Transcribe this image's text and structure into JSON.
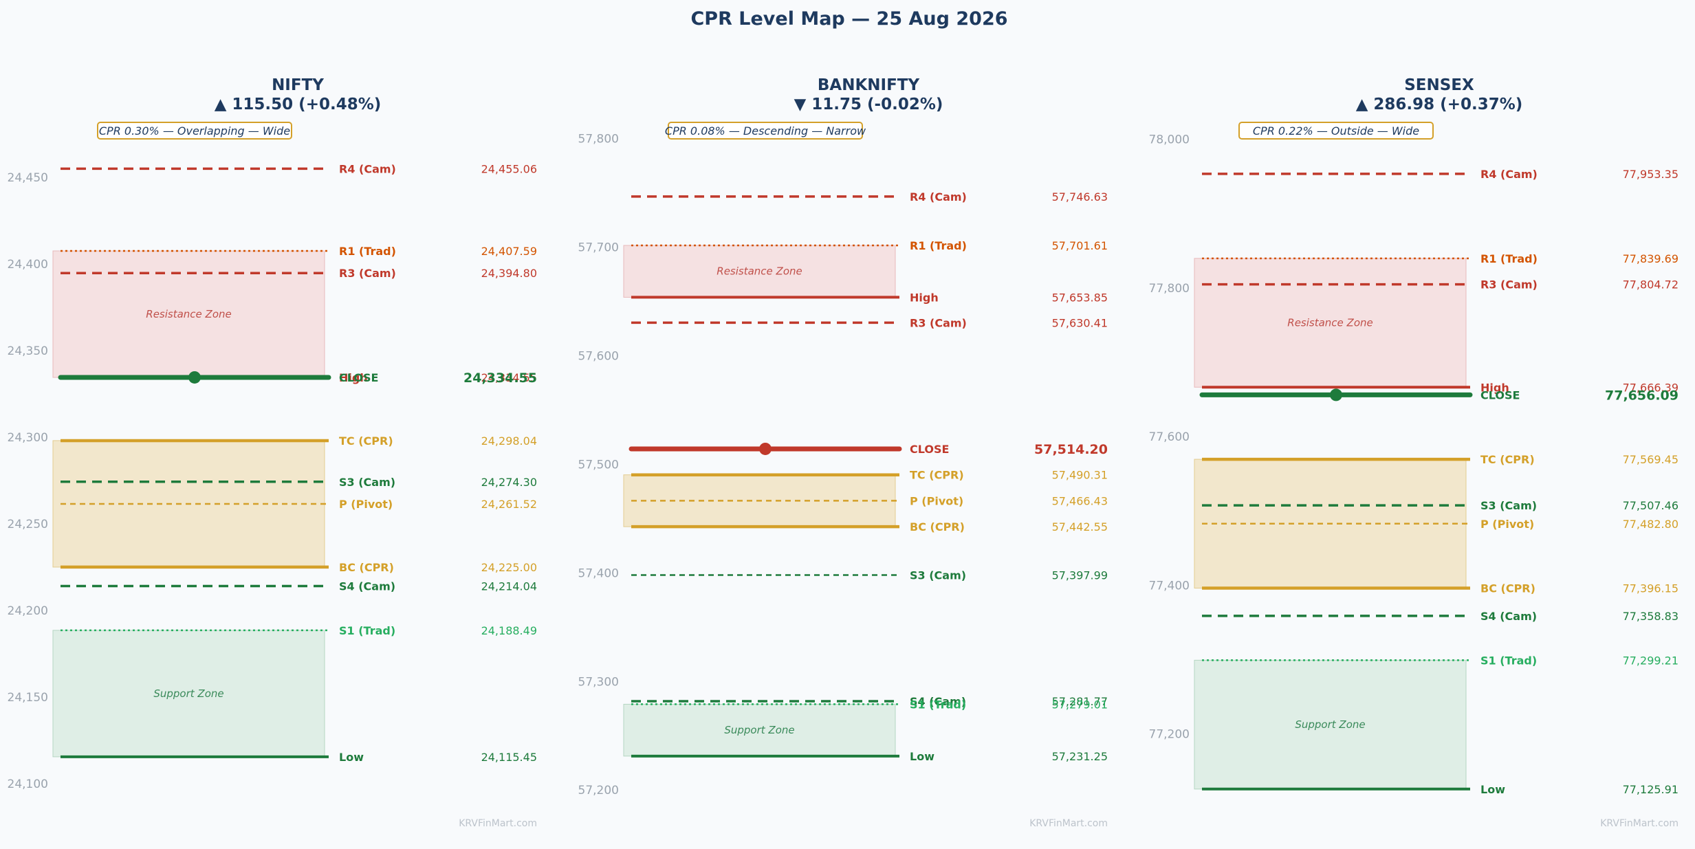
{
  "title": "CPR Level Map — 25 Aug 2026",
  "watermark": "KRVFinMart.com",
  "colors": {
    "title": "#1e3a5f",
    "resistance": "#c0392b",
    "resistance_trad": "#d35400",
    "support": "#1e7b3c",
    "support_trad": "#27ae60",
    "cpr": "#d4a029",
    "resistance_zone_fill": "#f5e1e2",
    "support_zone_fill": "#dfeee6",
    "cpr_zone_fill": "#f2e7cc",
    "tick": "#9aa3ad"
  },
  "chart_data": [
    {
      "type": "level-map",
      "name": "NIFTY",
      "change_text": "▲ 115.50 (+0.48%)",
      "direction": "up",
      "badge": "CPR 0.30% — Overlapping — Wide",
      "ylim": [
        24090,
        24485
      ],
      "yticks": [
        24100,
        24150,
        24200,
        24250,
        24300,
        24350,
        24400,
        24450
      ],
      "ytick_labels": [
        "24,100",
        "24,150",
        "24,200",
        "24,250",
        "24,300",
        "24,350",
        "24,400",
        "24,450"
      ],
      "zones": [
        {
          "kind": "resistance",
          "label": "Resistance Zone",
          "from": 24334.55,
          "to": 24407.59
        },
        {
          "kind": "cpr",
          "label": "",
          "from": 24225.0,
          "to": 24298.04
        },
        {
          "kind": "support",
          "label": "Support Zone",
          "from": 24115.45,
          "to": 24188.49
        }
      ],
      "levels": [
        {
          "name": "R4 (Cam)",
          "value": 24455.06,
          "value_text": "24,455.06",
          "style": "cam-r"
        },
        {
          "name": "R1 (Trad)",
          "value": 24407.59,
          "value_text": "24,407.59",
          "style": "trad-r"
        },
        {
          "name": "R3 (Cam)",
          "value": 24394.8,
          "value_text": "24,394.80",
          "style": "cam-r"
        },
        {
          "name": "High",
          "value": 24334.55,
          "value_text": "24,334.55",
          "style": "high"
        },
        {
          "name": "TC (CPR)",
          "value": 24298.04,
          "value_text": "24,298.04",
          "style": "cpr-edge"
        },
        {
          "name": "S3 (Cam)",
          "value": 24274.3,
          "value_text": "24,274.30",
          "style": "cam-s"
        },
        {
          "name": "P (Pivot)",
          "value": 24261.52,
          "value_text": "24,261.52",
          "style": "pivot"
        },
        {
          "name": "BC (CPR)",
          "value": 24225.0,
          "value_text": "24,225.00",
          "style": "cpr-edge"
        },
        {
          "name": "S4 (Cam)",
          "value": 24214.04,
          "value_text": "24,214.04",
          "style": "cam-s"
        },
        {
          "name": "S1 (Trad)",
          "value": 24188.49,
          "value_text": "24,188.49",
          "style": "trad-s"
        },
        {
          "name": "Low",
          "value": 24115.45,
          "value_text": "24,115.45",
          "style": "low"
        }
      ],
      "close": {
        "label": "CLOSE",
        "value": 24334.55,
        "value_text": "24,334.55",
        "color": "#1e7b3c"
      }
    },
    {
      "type": "level-map",
      "name": "BANKNIFTY",
      "change_text": "▼ 11.75 (-0.02%)",
      "direction": "down",
      "badge": "CPR 0.08% — Descending — Narrow",
      "ylim": [
        57190,
        57820
      ],
      "yticks": [
        57200,
        57300,
        57400,
        57500,
        57600,
        57700,
        57800
      ],
      "ytick_labels": [
        "57,200",
        "57,300",
        "57,400",
        "57,500",
        "57,600",
        "57,700",
        "57,800"
      ],
      "zones": [
        {
          "kind": "resistance",
          "label": "Resistance Zone",
          "from": 57653.85,
          "to": 57701.61
        },
        {
          "kind": "cpr",
          "label": "",
          "from": 57442.55,
          "to": 57490.31
        },
        {
          "kind": "support",
          "label": "Support Zone",
          "from": 57231.25,
          "to": 57279.01
        }
      ],
      "levels": [
        {
          "name": "R4 (Cam)",
          "value": 57746.63,
          "value_text": "57,746.63",
          "style": "cam-r"
        },
        {
          "name": "R1 (Trad)",
          "value": 57701.61,
          "value_text": "57,701.61",
          "style": "trad-r"
        },
        {
          "name": "High",
          "value": 57653.85,
          "value_text": "57,653.85",
          "style": "high"
        },
        {
          "name": "R3 (Cam)",
          "value": 57630.41,
          "value_text": "57,630.41",
          "style": "cam-r"
        },
        {
          "name": "TC (CPR)",
          "value": 57490.31,
          "value_text": "57,490.31",
          "style": "cpr-edge"
        },
        {
          "name": "P (Pivot)",
          "value": 57466.43,
          "value_text": "57,466.43",
          "style": "pivot"
        },
        {
          "name": "BC (CPR)",
          "value": 57442.55,
          "value_text": "57,442.55",
          "style": "cpr-edge"
        },
        {
          "name": "S3 (Cam)",
          "value": 57397.99,
          "value_text": "57,397.99",
          "style": "cam-s-thin"
        },
        {
          "name": "S4 (Cam)",
          "value": 57281.77,
          "value_text": "57,281.77",
          "style": "cam-s"
        },
        {
          "name": "S1 (Trad)",
          "value": 57279.01,
          "value_text": "57,279.01",
          "style": "trad-s"
        },
        {
          "name": "Low",
          "value": 57231.25,
          "value_text": "57,231.25",
          "style": "low"
        }
      ],
      "close": {
        "label": "CLOSE",
        "value": 57514.2,
        "value_text": "57,514.20",
        "color": "#c0392b"
      }
    },
    {
      "type": "level-map",
      "name": "SENSEX",
      "change_text": "▲ 286.98 (+0.37%)",
      "direction": "up",
      "badge": "CPR 0.22% — Outside — Wide",
      "ylim": [
        77110,
        78030
      ],
      "yticks": [
        77200,
        77400,
        77600,
        77800,
        78000
      ],
      "ytick_labels": [
        "77,200",
        "77,400",
        "77,600",
        "77,800",
        "78,000"
      ],
      "zones": [
        {
          "kind": "resistance",
          "label": "Resistance Zone",
          "from": 77666.39,
          "to": 77839.69
        },
        {
          "kind": "cpr",
          "label": "",
          "from": 77396.15,
          "to": 77569.45
        },
        {
          "kind": "support",
          "label": "Support Zone",
          "from": 77125.91,
          "to": 77299.21
        }
      ],
      "levels": [
        {
          "name": "R4 (Cam)",
          "value": 77953.35,
          "value_text": "77,953.35",
          "style": "cam-r"
        },
        {
          "name": "R1 (Trad)",
          "value": 77839.69,
          "value_text": "77,839.69",
          "style": "trad-r"
        },
        {
          "name": "R3 (Cam)",
          "value": 77804.72,
          "value_text": "77,804.72",
          "style": "cam-r"
        },
        {
          "name": "High",
          "value": 77666.39,
          "value_text": "77,666.39",
          "style": "high"
        },
        {
          "name": "TC (CPR)",
          "value": 77569.45,
          "value_text": "77,569.45",
          "style": "cpr-edge"
        },
        {
          "name": "S3 (Cam)",
          "value": 77507.46,
          "value_text": "77,507.46",
          "style": "cam-s"
        },
        {
          "name": "P (Pivot)",
          "value": 77482.8,
          "value_text": "77,482.80",
          "style": "pivot"
        },
        {
          "name": "BC (CPR)",
          "value": 77396.15,
          "value_text": "77,396.15",
          "style": "cpr-edge"
        },
        {
          "name": "S4 (Cam)",
          "value": 77358.83,
          "value_text": "77,358.83",
          "style": "cam-s"
        },
        {
          "name": "S1 (Trad)",
          "value": 77299.21,
          "value_text": "77,299.21",
          "style": "trad-s"
        },
        {
          "name": "Low",
          "value": 77125.91,
          "value_text": "77,125.91",
          "style": "low"
        }
      ],
      "close": {
        "label": "CLOSE",
        "value": 77656.09,
        "value_text": "77,656.09",
        "color": "#1e7b3c"
      }
    }
  ]
}
